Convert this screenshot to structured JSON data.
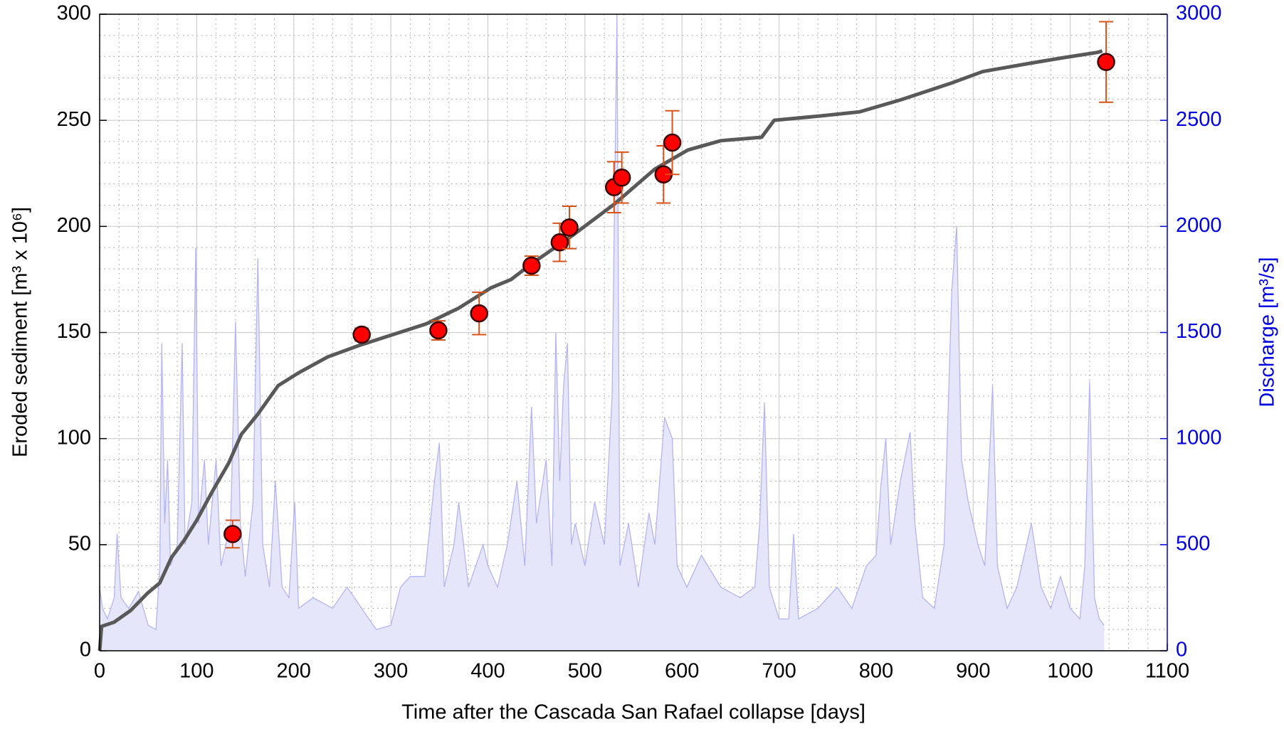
{
  "chart_data": {
    "type": "line",
    "xlabel": "Time after the Cascada San Rafael collapse [days]",
    "ylabel": "Eroded sediment [m³ x 10⁶]",
    "y2label": "Discharge [m³/s]",
    "xlim": [
      0,
      1100
    ],
    "xticks": [
      0,
      100,
      200,
      300,
      400,
      500,
      600,
      700,
      800,
      900,
      1000,
      1100
    ],
    "ylim": [
      0,
      300
    ],
    "yticks": [
      0,
      50,
      100,
      150,
      200,
      250,
      300
    ],
    "y2lim": [
      0,
      3000
    ],
    "y2ticks": [
      0,
      500,
      1000,
      1500,
      2000,
      2500,
      3000
    ],
    "grid": true,
    "xminor": 20,
    "yminor": 10,
    "y2color": "#0000e0",
    "series": [
      {
        "type": "area",
        "axis": "y2",
        "color": "#b4b4f5",
        "fill": "#e6e6fa",
        "x": [
          0,
          3,
          8,
          15,
          18,
          22,
          30,
          40,
          50,
          58,
          62,
          64,
          67,
          70,
          73,
          80,
          85,
          88,
          95,
          99,
          102,
          108,
          112,
          120,
          125,
          135,
          140,
          145,
          150,
          158,
          163,
          168,
          175,
          181,
          188,
          195,
          201,
          205,
          220,
          240,
          255,
          270,
          285,
          300,
          310,
          320,
          335,
          345,
          350,
          355,
          365,
          370,
          380,
          395,
          400,
          410,
          420,
          430,
          438,
          445,
          450,
          460,
          466,
          470,
          474,
          478,
          482,
          486,
          490,
          500,
          510,
          520,
          528,
          533,
          536,
          545,
          555,
          566,
          572,
          582,
          590,
          595,
          605,
          620,
          640,
          660,
          675,
          680,
          685,
          690,
          700,
          710,
          715,
          720,
          740,
          760,
          775,
          790,
          800,
          805,
          810,
          815,
          825,
          835,
          840,
          848,
          860,
          870,
          878,
          883,
          888,
          895,
          905,
          912,
          920,
          925,
          935,
          945,
          955,
          960,
          970,
          980,
          990,
          1000,
          1010,
          1015,
          1020,
          1025,
          1030,
          1035
        ],
        "values": [
          300,
          200,
          150,
          250,
          550,
          250,
          200,
          280,
          120,
          100,
          400,
          1450,
          600,
          900,
          400,
          500,
          1450,
          500,
          700,
          1900,
          600,
          900,
          500,
          900,
          400,
          600,
          1550,
          600,
          350,
          700,
          1850,
          500,
          300,
          800,
          300,
          250,
          700,
          200,
          250,
          200,
          300,
          200,
          100,
          120,
          300,
          350,
          350,
          800,
          980,
          300,
          500,
          700,
          300,
          500,
          400,
          300,
          500,
          800,
          400,
          1150,
          600,
          900,
          400,
          1500,
          800,
          1250,
          1450,
          500,
          600,
          400,
          700,
          500,
          1200,
          3000,
          400,
          600,
          300,
          650,
          500,
          1100,
          1000,
          400,
          300,
          450,
          300,
          250,
          300,
          600,
          1170,
          300,
          150,
          150,
          550,
          150,
          200,
          300,
          200,
          400,
          450,
          780,
          1000,
          500,
          800,
          1030,
          600,
          250,
          200,
          500,
          1700,
          2000,
          900,
          700,
          500,
          400,
          1250,
          400,
          200,
          300,
          500,
          600,
          300,
          200,
          350,
          200,
          150,
          400,
          1270,
          250,
          150,
          120
        ]
      },
      {
        "type": "line",
        "color": "#595959",
        "x": [
          0,
          2,
          15,
          32,
          49,
          62,
          74,
          87,
          100,
          116,
          133,
          146,
          163,
          184,
          205,
          235,
          268,
          302,
          336,
          370,
          403,
          424,
          446,
          488,
          530,
          572,
          606,
          640,
          682,
          695,
          741,
          783,
          825,
          876,
          910,
          960,
          994,
          1028,
          1033
        ],
        "values": [
          0,
          11.5,
          13.5,
          19,
          27,
          32,
          44,
          52,
          61.5,
          75,
          88.5,
          102,
          111.5,
          125,
          131,
          138.5,
          144,
          149,
          154,
          161.5,
          171,
          175,
          182.7,
          196,
          210.4,
          227,
          236,
          240.4,
          242,
          250,
          252,
          254,
          259.6,
          267.3,
          273,
          277,
          279.6,
          282,
          282.7
        ]
      },
      {
        "type": "scatter",
        "color": "#ff0000",
        "errcolor": "#d95319",
        "x": [
          137,
          270,
          349,
          391,
          445,
          474,
          484,
          530,
          538,
          581,
          590,
          1037
        ],
        "values": [
          55,
          149,
          151,
          159,
          181.5,
          192.5,
          199.5,
          218.5,
          223,
          224.5,
          239.5,
          277.5
        ],
        "errors": [
          6.5,
          3,
          4.5,
          10,
          4.5,
          9,
          10,
          12,
          12,
          13.5,
          15,
          19
        ]
      }
    ]
  }
}
